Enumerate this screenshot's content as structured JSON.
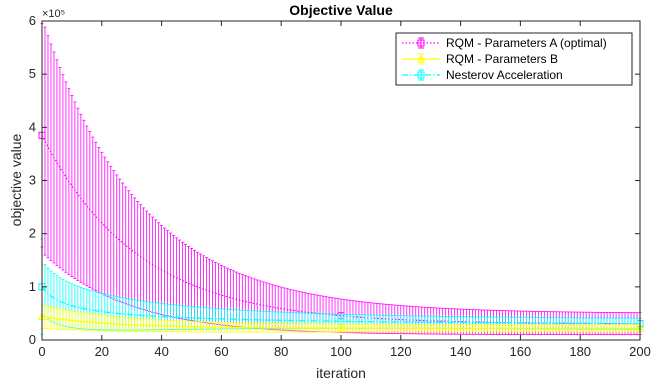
{
  "chart_data": {
    "type": "line",
    "title": "Objective Value",
    "xlabel": "iteration",
    "ylabel": "objective value",
    "y_exponent_label": "×10⁵",
    "y_scale": 100000,
    "xlim": [
      0,
      200
    ],
    "ylim": [
      0,
      600000
    ],
    "x_ticks": [
      0,
      20,
      40,
      60,
      80,
      100,
      120,
      140,
      160,
      180,
      200
    ],
    "y_ticks": [
      0,
      1,
      2,
      3,
      4,
      5,
      6
    ],
    "grid": false,
    "box": true,
    "legend_position": "top-right",
    "series": [
      {
        "name": "RQM - Parameters A (optimal)",
        "color": "#ff00ff",
        "line_style": "dotted",
        "marker": "square",
        "mean_model": {
          "c": 30000,
          "a": 355000,
          "tau": 32,
          "b": 0
        },
        "error_model": {
          "c": 20000,
          "a": 200000,
          "tau": 35,
          "b": 0
        },
        "sample": [
          [
            0,
            380000
          ],
          [
            20,
            265000
          ],
          [
            50,
            185000
          ],
          [
            100,
            103000
          ],
          [
            200,
            67000
          ]
        ]
      },
      {
        "name": "RQM - Parameters B",
        "color": "#ffff00",
        "line_style": "solid",
        "marker": "triangle",
        "mean_model": {
          "c": 22000,
          "a": 22000,
          "tau": 25,
          "b": 0
        },
        "error_model": {
          "c": 7000,
          "a": 15000,
          "tau": 30,
          "b": 0
        },
        "sample": [
          [
            0,
            44000
          ],
          [
            20,
            36000
          ],
          [
            50,
            30000
          ],
          [
            100,
            26000
          ],
          [
            200,
            22000
          ]
        ]
      },
      {
        "name": "Nesterov Acceleration",
        "color": "#00ffff",
        "line_style": "dashdot",
        "marker": "square",
        "mean_model": {
          "c": 0,
          "a": 0,
          "tau": 1,
          "b": 5.4
        },
        "error_model": {
          "c": 10000,
          "a": 40000,
          "tau": 40,
          "b": 0
        },
        "sample": [
          [
            0,
            100000
          ],
          [
            20,
            70000
          ],
          [
            50,
            48000
          ],
          [
            100,
            37000
          ],
          [
            200,
            26000
          ]
        ]
      }
    ]
  }
}
